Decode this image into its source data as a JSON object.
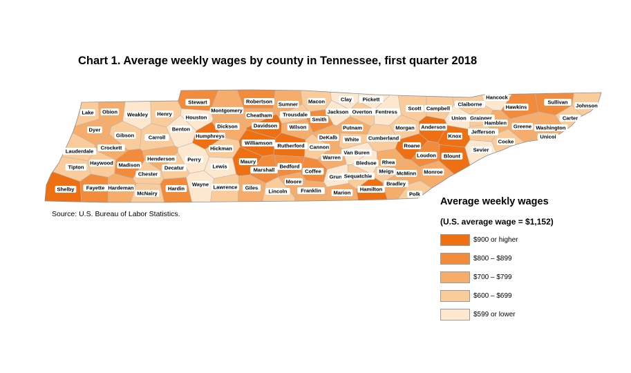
{
  "title": "Chart 1. Average weekly wages by county in Tennessee, first quarter 2018",
  "source": "Source: U.S. Bureau of Labor Statistics.",
  "legend": {
    "title": "Average weekly wages",
    "subtitle": "(U.S. average wage = $1,152)",
    "items": [
      {
        "label": "$900 or higher",
        "color": "#ee7012"
      },
      {
        "label": "$800 – $899",
        "color": "#f28b3c"
      },
      {
        "label": "$700 – $799",
        "color": "#f6ac6b"
      },
      {
        "label": "$600 – $699",
        "color": "#facb9b"
      },
      {
        "label": "$599 or lower",
        "color": "#fde8cf"
      }
    ]
  },
  "counties": [
    {
      "name": "Lake",
      "class": 3
    },
    {
      "name": "Obion",
      "class": 2
    },
    {
      "name": "Weakley",
      "class": 4
    },
    {
      "name": "Henry",
      "class": 3
    },
    {
      "name": "Stewart",
      "class": 1
    },
    {
      "name": "Montgomery",
      "class": 2
    },
    {
      "name": "Robertson",
      "class": 1
    },
    {
      "name": "Sumner",
      "class": 2
    },
    {
      "name": "Macon",
      "class": 3
    },
    {
      "name": "Clay",
      "class": 4
    },
    {
      "name": "Pickett",
      "class": 4
    },
    {
      "name": "Scott",
      "class": 3
    },
    {
      "name": "Campbell",
      "class": 3
    },
    {
      "name": "Claiborne",
      "class": 3
    },
    {
      "name": "Hancock",
      "class": 4
    },
    {
      "name": "Hawkins",
      "class": 1
    },
    {
      "name": "Sullivan",
      "class": 1
    },
    {
      "name": "Johnson",
      "class": 3
    },
    {
      "name": "Dyer",
      "class": 2
    },
    {
      "name": "Gibson",
      "class": 3
    },
    {
      "name": "Carroll",
      "class": 3
    },
    {
      "name": "Benton",
      "class": 4
    },
    {
      "name": "Houston",
      "class": 4
    },
    {
      "name": "Humphreys",
      "class": 0
    },
    {
      "name": "Dickson",
      "class": 2
    },
    {
      "name": "Cheatham",
      "class": 2
    },
    {
      "name": "Davidson",
      "class": 0
    },
    {
      "name": "Trousdale",
      "class": 3
    },
    {
      "name": "Smith",
      "class": 1
    },
    {
      "name": "Jackson",
      "class": 4
    },
    {
      "name": "Overton",
      "class": 3
    },
    {
      "name": "Fentress",
      "class": 4
    },
    {
      "name": "Morgan",
      "class": 3
    },
    {
      "name": "Anderson",
      "class": 0
    },
    {
      "name": "Union",
      "class": 4
    },
    {
      "name": "Grainger",
      "class": 3
    },
    {
      "name": "Hamblen",
      "class": 2
    },
    {
      "name": "Jefferson",
      "class": 3
    },
    {
      "name": "Greene",
      "class": 2
    },
    {
      "name": "Washington",
      "class": 2
    },
    {
      "name": "Unicoi",
      "class": 2
    },
    {
      "name": "Carter",
      "class": 3
    },
    {
      "name": "Lauderdale",
      "class": 3
    },
    {
      "name": "Crockett",
      "class": 2
    },
    {
      "name": "Tipton",
      "class": 3
    },
    {
      "name": "Haywood",
      "class": 3
    },
    {
      "name": "Madison",
      "class": 1
    },
    {
      "name": "Henderson",
      "class": 2
    },
    {
      "name": "Decatur",
      "class": 3
    },
    {
      "name": "Chester",
      "class": 3
    },
    {
      "name": "Perry",
      "class": 4
    },
    {
      "name": "Hickman",
      "class": 3
    },
    {
      "name": "Lewis",
      "class": 4
    },
    {
      "name": "Williamson",
      "class": 0
    },
    {
      "name": "Rutherford",
      "class": 0
    },
    {
      "name": "Wilson",
      "class": 2
    },
    {
      "name": "Cannon",
      "class": 3
    },
    {
      "name": "DeKalb",
      "class": 2
    },
    {
      "name": "Putnam",
      "class": 2
    },
    {
      "name": "White",
      "class": 3
    },
    {
      "name": "Cumberland",
      "class": 3
    },
    {
      "name": "Roane",
      "class": 0
    },
    {
      "name": "Knox",
      "class": 0
    },
    {
      "name": "Loudon",
      "class": 1
    },
    {
      "name": "Blount",
      "class": 0
    },
    {
      "name": "Sevier",
      "class": 4
    },
    {
      "name": "Cocke",
      "class": 3
    },
    {
      "name": "Shelby",
      "class": 0
    },
    {
      "name": "Fayette",
      "class": 1
    },
    {
      "name": "Hardeman",
      "class": 2
    },
    {
      "name": "McNairy",
      "class": 3
    },
    {
      "name": "Hardin",
      "class": 1
    },
    {
      "name": "Wayne",
      "class": 4
    },
    {
      "name": "Lawrence",
      "class": 3
    },
    {
      "name": "Giles",
      "class": 2
    },
    {
      "name": "Maury",
      "class": 0
    },
    {
      "name": "Marshall",
      "class": 1
    },
    {
      "name": "Bedford",
      "class": 1
    },
    {
      "name": "Lincoln",
      "class": 3
    },
    {
      "name": "Moore",
      "class": 2
    },
    {
      "name": "Franklin",
      "class": 2
    },
    {
      "name": "Coffee",
      "class": 1
    },
    {
      "name": "Warren",
      "class": 2
    },
    {
      "name": "Grundy",
      "class": 4
    },
    {
      "name": "Van Buren",
      "class": 4
    },
    {
      "name": "Sequatchie",
      "class": 3
    },
    {
      "name": "Bledsoe",
      "class": 4
    },
    {
      "name": "Marion",
      "class": 2
    },
    {
      "name": "Hamilton",
      "class": 0
    },
    {
      "name": "Rhea",
      "class": 2
    },
    {
      "name": "Meigs",
      "class": 3
    },
    {
      "name": "McMinn",
      "class": 2
    },
    {
      "name": "Bradley",
      "class": 2
    },
    {
      "name": "Polk",
      "class": 3
    },
    {
      "name": "Monroe",
      "class": 2
    }
  ]
}
